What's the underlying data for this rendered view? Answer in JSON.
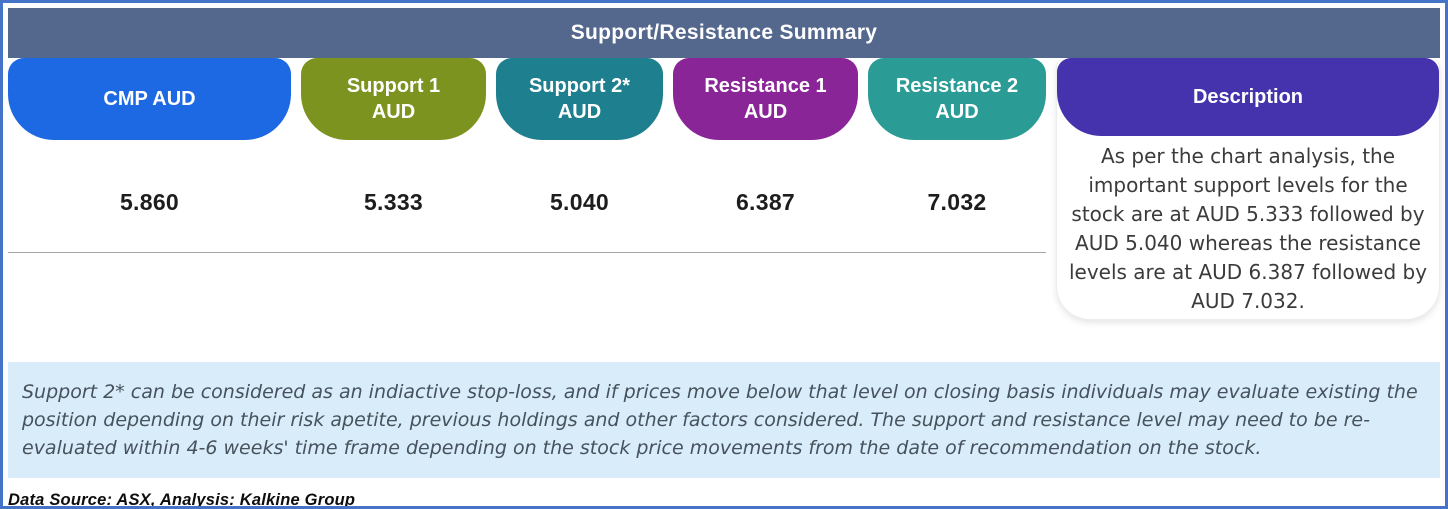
{
  "window": {
    "border_color": "#4573c8"
  },
  "title_bar": {
    "label": "Support/Resistance Summary",
    "bg": "#54678d"
  },
  "table": {
    "columns": [
      {
        "id": "cmp",
        "label": "CMP AUD",
        "color": "#1c69e3",
        "value": "5.860"
      },
      {
        "id": "support1",
        "label": "Support 1\nAUD",
        "color": "#7d931f",
        "value": "5.333"
      },
      {
        "id": "support2",
        "label": "Support 2*\nAUD",
        "color": "#1e7f8f",
        "value": "5.040"
      },
      {
        "id": "resistance1",
        "label": "Resistance 1\nAUD",
        "color": "#8a2597",
        "value": "6.387"
      },
      {
        "id": "resistance2",
        "label": "Resistance 2\nAUD",
        "color": "#2a9c95",
        "value": "7.032"
      }
    ],
    "description": {
      "label": "Description",
      "color": "#4533ae",
      "text": "As per the chart analysis, the important support levels for the stock are at AUD 5.333 followed by AUD 5.040 whereas the resistance levels are at AUD 6.387 followed by AUD 7.032."
    }
  },
  "chart_data": {
    "type": "table",
    "title": "Support/Resistance Summary",
    "columns": [
      "CMP AUD",
      "Support 1 AUD",
      "Support 2* AUD",
      "Resistance 1 AUD",
      "Resistance 2 AUD"
    ],
    "values": [
      5.86,
      5.333,
      5.04,
      6.387,
      7.032
    ]
  },
  "disclaimer": {
    "bg": "#d9ecf9",
    "text": "Support 2* can be considered as an indiactive stop-loss, and if prices move below that level on closing basis individuals may evaluate existing the position depending on their risk apetite, previous holdings and other factors considered. The support and resistance level may need to be re-evaluated within 4-6 weeks' time frame depending on the stock price movements from  the date of recommendation on the stock."
  },
  "footer": {
    "source_note": "Data Source: ASX, Analysis: Kalkine Group"
  }
}
